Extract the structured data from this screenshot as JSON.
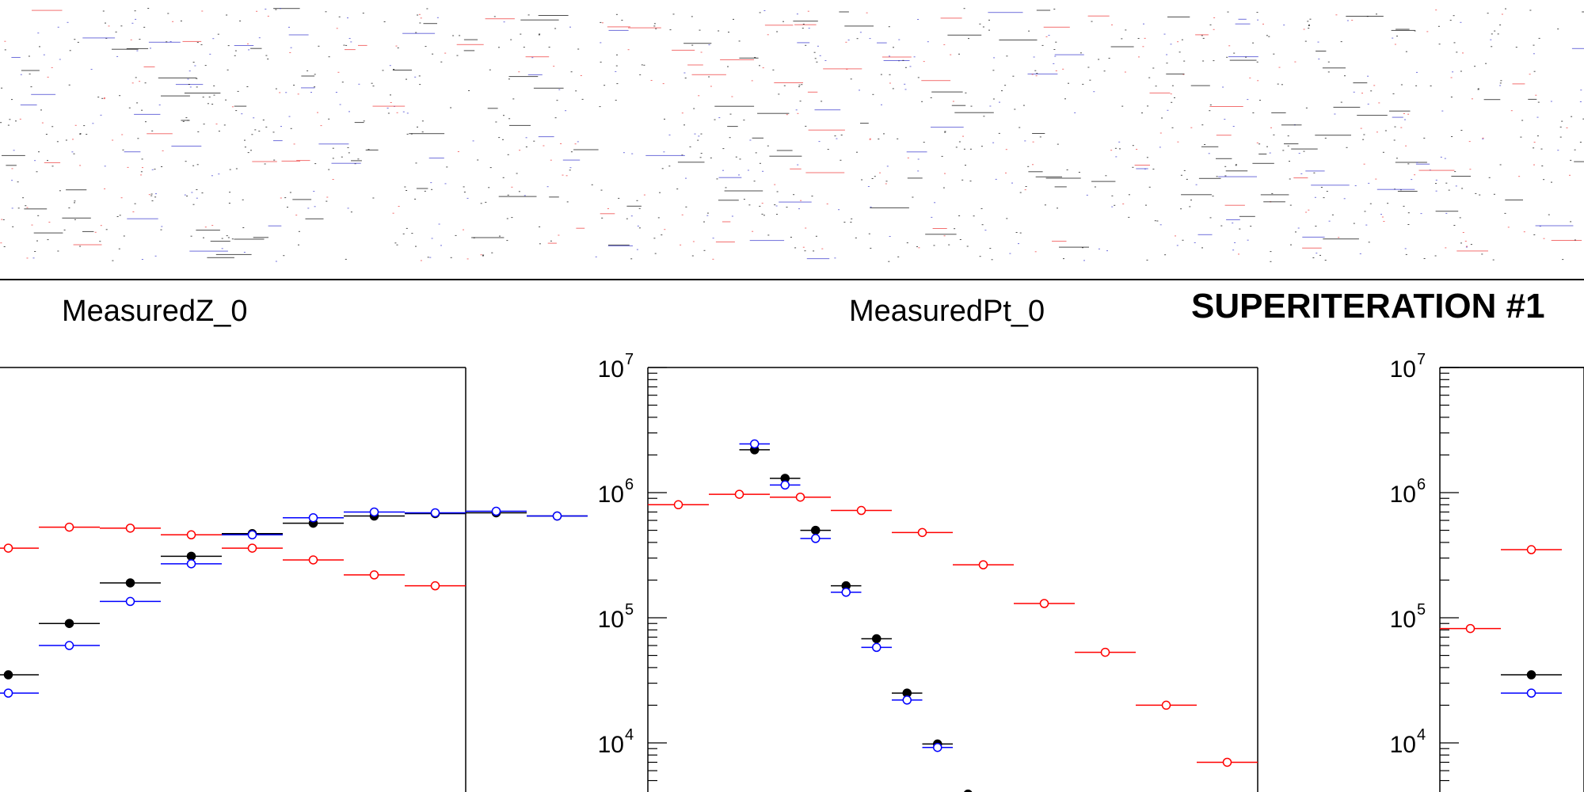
{
  "header": {
    "superiteration": "SUPERITERATION #1"
  },
  "colors": {
    "measured": "#000000",
    "reco": "#0000ff",
    "gen": "#ff0000"
  },
  "chart_data": [
    {
      "type": "scatter",
      "title": "MeasuredZ_0",
      "y_scale": "log",
      "ylim": [
        1000,
        10000000
      ],
      "x_bins": 15,
      "visible_bins": [
        7,
        14
      ],
      "series": [
        {
          "name": "",
          "style": "filled",
          "values": [
            null,
            null,
            null,
            null,
            null,
            null,
            null,
            35000,
            90000,
            190000,
            310000,
            470000,
            570000,
            650000,
            680000,
            690000,
            650000
          ]
        },
        {
          "name": "",
          "style": "open",
          "values": [
            null,
            null,
            null,
            null,
            null,
            null,
            null,
            25000,
            60000,
            135000,
            270000,
            460000,
            630000,
            700000,
            690000,
            710000,
            650000
          ]
        },
        {
          "name": "",
          "style": "open",
          "values": [
            null,
            null,
            null,
            null,
            null,
            null,
            null,
            360000,
            530000,
            520000,
            460000,
            360000,
            290000,
            220000,
            180000
          ]
        }
      ]
    },
    {
      "type": "scatter",
      "title": "MeasuredPt_0",
      "y_scale": "log",
      "ylim": [
        1000,
        10000000
      ],
      "ticks": [
        "10",
        "10",
        "10",
        "10"
      ],
      "tick_exponents": [
        "7",
        "6",
        "5",
        "4"
      ],
      "tick_values": [
        10000000,
        1000000,
        100000,
        10000
      ],
      "n_bins": 20,
      "series": [
        {
          "name": "",
          "style": "filled",
          "values": [
            null,
            null,
            null,
            2200000,
            1300000,
            500000,
            180000,
            68000,
            25000,
            9800,
            3900
          ]
        },
        {
          "name": "",
          "style": "open",
          "values": [
            null,
            null,
            null,
            2450000,
            1150000,
            430000,
            160000,
            58000,
            22000,
            9200
          ]
        },
        {
          "name": "",
          "style": "open",
          "values": [
            800000,
            970000,
            920000,
            720000,
            480000,
            265000,
            130000,
            53000,
            20000,
            7000
          ],
          "bin_width": 2
        }
      ]
    },
    {
      "type": "scatter",
      "title": "",
      "y_scale": "log",
      "ylim": [
        1000,
        10000000
      ],
      "ticks": [
        "10",
        "10",
        "10",
        "10"
      ],
      "tick_exponents": [
        "7",
        "6",
        "5",
        "4"
      ],
      "tick_values": [
        10000000,
        1000000,
        100000,
        10000
      ],
      "series": [
        {
          "name": "",
          "style": "open",
          "values": [
            82000,
            350000
          ]
        },
        {
          "name": "",
          "style": "filled",
          "values": [
            null,
            35000
          ]
        },
        {
          "name": "",
          "style": "open",
          "values": [
            null,
            25000
          ]
        }
      ]
    }
  ]
}
